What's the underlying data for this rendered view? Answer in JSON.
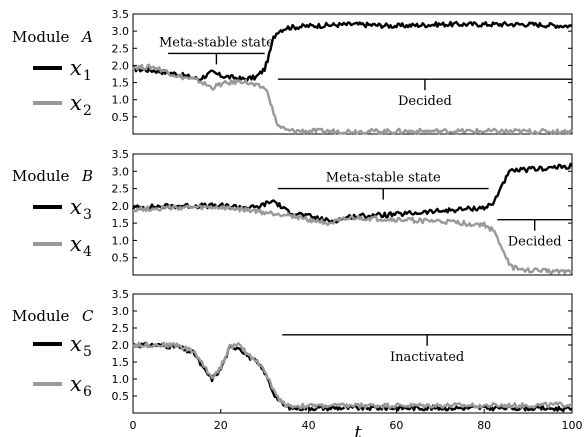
{
  "chart_data": [
    {
      "type": "line",
      "panel": "Module A",
      "module_label": "Module",
      "module_letter": "A",
      "xlabel": "t",
      "xlim": [
        0,
        100
      ],
      "ylim": [
        0,
        3.5
      ],
      "yticks": [
        "0.5",
        "1.0",
        "1.5",
        "2.0",
        "2.5",
        "3.0",
        "3.5"
      ],
      "xticks": [],
      "series": [
        {
          "name": "x1",
          "var": "x",
          "sub": "1",
          "color": "#000000",
          "points": [
            [
              0,
              1.9
            ],
            [
              5,
              1.85
            ],
            [
              10,
              1.75
            ],
            [
              15,
              1.6
            ],
            [
              18,
              1.8
            ],
            [
              20,
              1.7
            ],
            [
              25,
              1.6
            ],
            [
              28,
              1.65
            ],
            [
              30,
              1.9
            ],
            [
              31,
              2.3
            ],
            [
              32,
              2.8
            ],
            [
              33,
              3.0
            ],
            [
              35,
              3.1
            ],
            [
              40,
              3.15
            ],
            [
              50,
              3.2
            ],
            [
              60,
              3.15
            ],
            [
              70,
              3.2
            ],
            [
              80,
              3.2
            ],
            [
              90,
              3.2
            ],
            [
              100,
              3.15
            ]
          ]
        },
        {
          "name": "x2",
          "var": "x",
          "sub": "2",
          "color": "#999999",
          "points": [
            [
              0,
              1.95
            ],
            [
              5,
              1.95
            ],
            [
              10,
              1.7
            ],
            [
              15,
              1.55
            ],
            [
              18,
              1.35
            ],
            [
              20,
              1.45
            ],
            [
              25,
              1.55
            ],
            [
              28,
              1.4
            ],
            [
              30,
              1.35
            ],
            [
              31,
              1.1
            ],
            [
              32,
              0.6
            ],
            [
              33,
              0.25
            ],
            [
              35,
              0.1
            ],
            [
              40,
              0.08
            ],
            [
              60,
              0.08
            ],
            [
              80,
              0.08
            ],
            [
              100,
              0.07
            ]
          ]
        }
      ],
      "annotations": [
        {
          "text": "Meta-stable state",
          "x_start": 8,
          "x_end": 30,
          "y": 2.35
        },
        {
          "text": "Decided",
          "x_start": 33,
          "x_end": 100,
          "y": 1.6
        }
      ]
    },
    {
      "type": "line",
      "panel": "Module B",
      "module_label": "Module",
      "module_letter": "B",
      "xlim": [
        0,
        100
      ],
      "ylim": [
        0,
        3.5
      ],
      "yticks": [
        "0.5",
        "1.0",
        "1.5",
        "2.0",
        "2.5",
        "3.0",
        "3.5"
      ],
      "xticks": [],
      "series": [
        {
          "name": "x3",
          "var": "x",
          "sub": "3",
          "color": "#000000",
          "points": [
            [
              0,
              1.95
            ],
            [
              10,
              2.0
            ],
            [
              20,
              2.0
            ],
            [
              28,
              1.95
            ],
            [
              30,
              2.05
            ],
            [
              32,
              2.15
            ],
            [
              35,
              1.85
            ],
            [
              40,
              1.7
            ],
            [
              45,
              1.55
            ],
            [
              50,
              1.7
            ],
            [
              60,
              1.75
            ],
            [
              70,
              1.85
            ],
            [
              75,
              1.9
            ],
            [
              80,
              1.95
            ],
            [
              82,
              2.05
            ],
            [
              84,
              2.6
            ],
            [
              86,
              3.0
            ],
            [
              90,
              3.05
            ],
            [
              95,
              3.1
            ],
            [
              100,
              3.15
            ]
          ]
        },
        {
          "name": "x4",
          "var": "x",
          "sub": "4",
          "color": "#999999",
          "points": [
            [
              0,
              1.9
            ],
            [
              10,
              1.95
            ],
            [
              20,
              1.95
            ],
            [
              28,
              1.85
            ],
            [
              30,
              1.8
            ],
            [
              35,
              1.75
            ],
            [
              40,
              1.6
            ],
            [
              45,
              1.5
            ],
            [
              50,
              1.65
            ],
            [
              60,
              1.6
            ],
            [
              70,
              1.55
            ],
            [
              75,
              1.5
            ],
            [
              80,
              1.45
            ],
            [
              82,
              1.3
            ],
            [
              84,
              0.8
            ],
            [
              86,
              0.25
            ],
            [
              88,
              0.15
            ],
            [
              95,
              0.12
            ],
            [
              100,
              0.12
            ]
          ]
        }
      ],
      "annotations": [
        {
          "text": "Meta-stable state",
          "x_start": 33,
          "x_end": 81,
          "y": 2.5
        },
        {
          "text": "Decided",
          "x_start": 83,
          "x_end": 100,
          "y": 1.6
        }
      ]
    },
    {
      "type": "line",
      "panel": "Module C",
      "module_label": "Module",
      "module_letter": "C",
      "xlim": [
        0,
        100
      ],
      "ylim": [
        0,
        3.5
      ],
      "yticks": [
        "0.5",
        "1.0",
        "1.5",
        "2.0",
        "2.5",
        "3.0",
        "3.5"
      ],
      "xticks": [
        "0",
        "20",
        "40",
        "60",
        "80",
        "100"
      ],
      "series": [
        {
          "name": "x5",
          "var": "x",
          "sub": "5",
          "color": "#000000",
          "points": [
            [
              0,
              2.0
            ],
            [
              5,
              2.0
            ],
            [
              10,
              1.95
            ],
            [
              14,
              1.75
            ],
            [
              16,
              1.3
            ],
            [
              18,
              1.0
            ],
            [
              20,
              1.3
            ],
            [
              22,
              1.9
            ],
            [
              24,
              1.95
            ],
            [
              26,
              1.7
            ],
            [
              28,
              1.5
            ],
            [
              30,
              1.2
            ],
            [
              32,
              0.6
            ],
            [
              34,
              0.25
            ],
            [
              36,
              0.15
            ],
            [
              50,
              0.15
            ],
            [
              70,
              0.15
            ],
            [
              90,
              0.15
            ],
            [
              100,
              0.12
            ]
          ]
        },
        {
          "name": "x6",
          "var": "x",
          "sub": "6",
          "color": "#999999",
          "points": [
            [
              0,
              2.0
            ],
            [
              5,
              2.0
            ],
            [
              10,
              2.0
            ],
            [
              14,
              1.8
            ],
            [
              16,
              1.4
            ],
            [
              18,
              1.05
            ],
            [
              20,
              1.35
            ],
            [
              22,
              1.95
            ],
            [
              24,
              2.0
            ],
            [
              26,
              1.75
            ],
            [
              28,
              1.55
            ],
            [
              30,
              1.25
            ],
            [
              32,
              0.65
            ],
            [
              34,
              0.3
            ],
            [
              36,
              0.2
            ],
            [
              50,
              0.22
            ],
            [
              70,
              0.22
            ],
            [
              90,
              0.22
            ],
            [
              100,
              0.25
            ]
          ]
        }
      ],
      "annotations": [
        {
          "text": "Inactivated",
          "x_start": 34,
          "x_end": 100,
          "y": 2.3
        }
      ]
    }
  ]
}
